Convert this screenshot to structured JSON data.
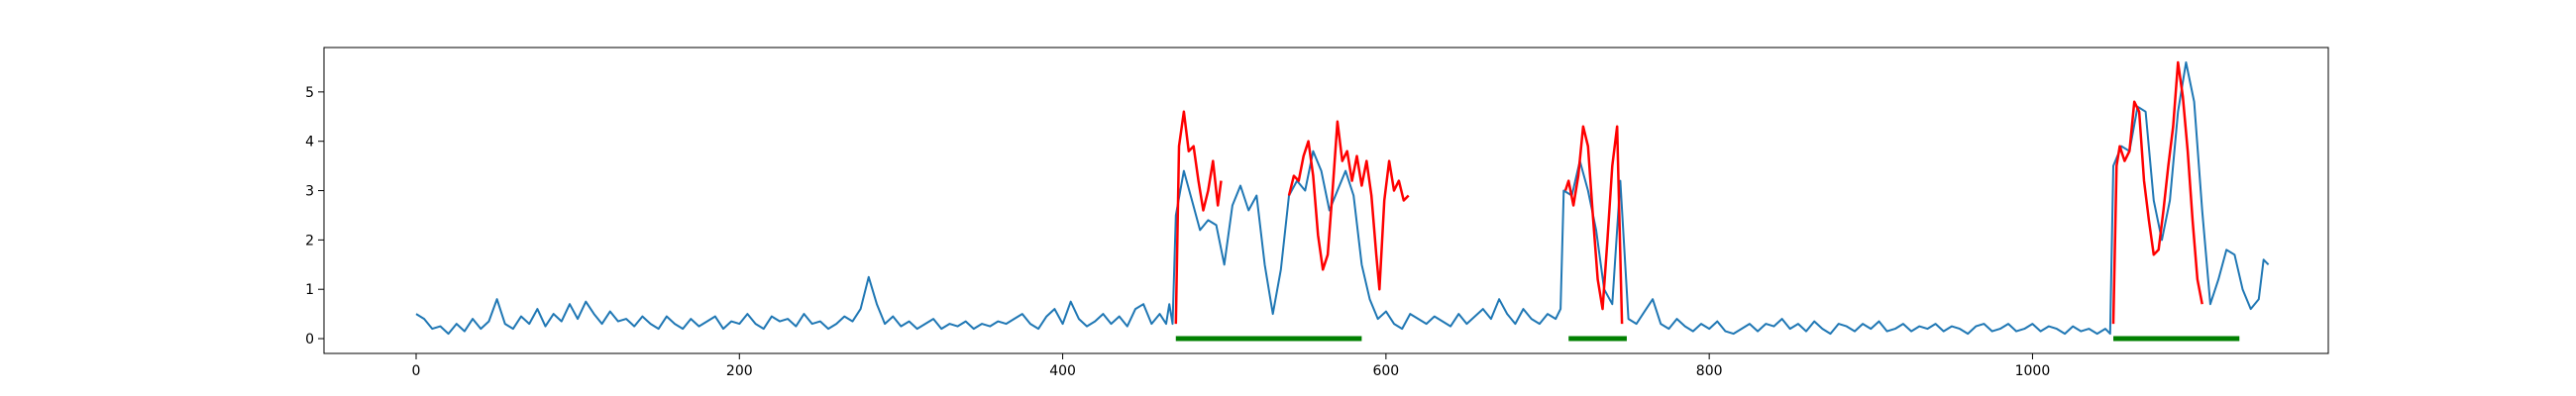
{
  "chart_data": {
    "type": "line",
    "title": "",
    "xlabel": "",
    "ylabel": "",
    "xlim": [
      -57,
      1183
    ],
    "ylim": [
      -0.3,
      5.9
    ],
    "grid": false,
    "legend": "none",
    "x_ticks": [
      0,
      200,
      400,
      600,
      800,
      1000
    ],
    "x_tick_labels": [
      "0",
      "200",
      "400",
      "600",
      "800",
      "1000"
    ],
    "y_ticks": [
      0,
      1,
      2,
      3,
      4,
      5
    ],
    "y_tick_labels": [
      "0",
      "1",
      "2",
      "3",
      "4",
      "5"
    ],
    "colors": {
      "signal": "#1f77b4",
      "highlight": "#ff0000",
      "interval": "#008000",
      "frame": "#000000"
    },
    "signal_points": [
      [
        0,
        0.5
      ],
      [
        5,
        0.4
      ],
      [
        10,
        0.2
      ],
      [
        15,
        0.25
      ],
      [
        20,
        0.1
      ],
      [
        25,
        0.3
      ],
      [
        30,
        0.15
      ],
      [
        35,
        0.4
      ],
      [
        40,
        0.2
      ],
      [
        45,
        0.35
      ],
      [
        50,
        0.8
      ],
      [
        55,
        0.3
      ],
      [
        60,
        0.2
      ],
      [
        65,
        0.45
      ],
      [
        70,
        0.3
      ],
      [
        75,
        0.6
      ],
      [
        80,
        0.25
      ],
      [
        85,
        0.5
      ],
      [
        90,
        0.35
      ],
      [
        95,
        0.7
      ],
      [
        100,
        0.4
      ],
      [
        105,
        0.75
      ],
      [
        110,
        0.5
      ],
      [
        115,
        0.3
      ],
      [
        120,
        0.55
      ],
      [
        125,
        0.35
      ],
      [
        130,
        0.4
      ],
      [
        135,
        0.25
      ],
      [
        140,
        0.45
      ],
      [
        145,
        0.3
      ],
      [
        150,
        0.2
      ],
      [
        155,
        0.45
      ],
      [
        160,
        0.3
      ],
      [
        165,
        0.2
      ],
      [
        170,
        0.4
      ],
      [
        175,
        0.25
      ],
      [
        180,
        0.35
      ],
      [
        185,
        0.45
      ],
      [
        190,
        0.2
      ],
      [
        195,
        0.35
      ],
      [
        200,
        0.3
      ],
      [
        205,
        0.5
      ],
      [
        210,
        0.3
      ],
      [
        215,
        0.2
      ],
      [
        220,
        0.45
      ],
      [
        225,
        0.35
      ],
      [
        230,
        0.4
      ],
      [
        235,
        0.25
      ],
      [
        240,
        0.5
      ],
      [
        245,
        0.3
      ],
      [
        250,
        0.35
      ],
      [
        255,
        0.2
      ],
      [
        260,
        0.3
      ],
      [
        265,
        0.45
      ],
      [
        270,
        0.35
      ],
      [
        275,
        0.6
      ],
      [
        280,
        1.25
      ],
      [
        285,
        0.7
      ],
      [
        290,
        0.3
      ],
      [
        295,
        0.45
      ],
      [
        300,
        0.25
      ],
      [
        305,
        0.35
      ],
      [
        310,
        0.2
      ],
      [
        315,
        0.3
      ],
      [
        320,
        0.4
      ],
      [
        325,
        0.2
      ],
      [
        330,
        0.3
      ],
      [
        335,
        0.25
      ],
      [
        340,
        0.35
      ],
      [
        345,
        0.2
      ],
      [
        350,
        0.3
      ],
      [
        355,
        0.25
      ],
      [
        360,
        0.35
      ],
      [
        365,
        0.3
      ],
      [
        370,
        0.4
      ],
      [
        375,
        0.5
      ],
      [
        380,
        0.3
      ],
      [
        385,
        0.2
      ],
      [
        390,
        0.45
      ],
      [
        395,
        0.6
      ],
      [
        400,
        0.3
      ],
      [
        405,
        0.75
      ],
      [
        410,
        0.4
      ],
      [
        415,
        0.25
      ],
      [
        420,
        0.35
      ],
      [
        425,
        0.5
      ],
      [
        430,
        0.3
      ],
      [
        435,
        0.45
      ],
      [
        440,
        0.25
      ],
      [
        445,
        0.6
      ],
      [
        450,
        0.7
      ],
      [
        455,
        0.3
      ],
      [
        460,
        0.5
      ],
      [
        464,
        0.3
      ],
      [
        466,
        0.7
      ],
      [
        468,
        0.3
      ],
      [
        470,
        2.5
      ],
      [
        475,
        3.4
      ],
      [
        480,
        2.8
      ],
      [
        485,
        2.2
      ],
      [
        490,
        2.4
      ],
      [
        495,
        2.3
      ],
      [
        500,
        1.5
      ],
      [
        505,
        2.7
      ],
      [
        510,
        3.1
      ],
      [
        515,
        2.6
      ],
      [
        520,
        2.9
      ],
      [
        525,
        1.5
      ],
      [
        530,
        0.5
      ],
      [
        535,
        1.4
      ],
      [
        540,
        2.9
      ],
      [
        545,
        3.2
      ],
      [
        550,
        3.0
      ],
      [
        555,
        3.8
      ],
      [
        560,
        3.4
      ],
      [
        565,
        2.6
      ],
      [
        570,
        3.0
      ],
      [
        575,
        3.4
      ],
      [
        580,
        2.9
      ],
      [
        585,
        1.5
      ],
      [
        590,
        0.8
      ],
      [
        595,
        0.4
      ],
      [
        600,
        0.55
      ],
      [
        605,
        0.3
      ],
      [
        610,
        0.2
      ],
      [
        615,
        0.5
      ],
      [
        620,
        0.4
      ],
      [
        625,
        0.3
      ],
      [
        630,
        0.45
      ],
      [
        635,
        0.35
      ],
      [
        640,
        0.25
      ],
      [
        645,
        0.5
      ],
      [
        650,
        0.3
      ],
      [
        655,
        0.45
      ],
      [
        660,
        0.6
      ],
      [
        665,
        0.4
      ],
      [
        670,
        0.8
      ],
      [
        675,
        0.5
      ],
      [
        680,
        0.3
      ],
      [
        685,
        0.6
      ],
      [
        690,
        0.4
      ],
      [
        695,
        0.3
      ],
      [
        700,
        0.5
      ],
      [
        705,
        0.4
      ],
      [
        708,
        0.6
      ],
      [
        710,
        3.0
      ],
      [
        715,
        2.9
      ],
      [
        720,
        3.6
      ],
      [
        725,
        3.0
      ],
      [
        730,
        2.2
      ],
      [
        735,
        1.0
      ],
      [
        740,
        0.7
      ],
      [
        745,
        3.2
      ],
      [
        750,
        0.4
      ],
      [
        755,
        0.3
      ],
      [
        760,
        0.55
      ],
      [
        765,
        0.8
      ],
      [
        770,
        0.3
      ],
      [
        775,
        0.2
      ],
      [
        780,
        0.4
      ],
      [
        785,
        0.25
      ],
      [
        790,
        0.15
      ],
      [
        795,
        0.3
      ],
      [
        800,
        0.2
      ],
      [
        805,
        0.35
      ],
      [
        810,
        0.15
      ],
      [
        815,
        0.1
      ],
      [
        820,
        0.2
      ],
      [
        825,
        0.3
      ],
      [
        830,
        0.15
      ],
      [
        835,
        0.3
      ],
      [
        840,
        0.25
      ],
      [
        845,
        0.4
      ],
      [
        850,
        0.2
      ],
      [
        855,
        0.3
      ],
      [
        860,
        0.15
      ],
      [
        865,
        0.35
      ],
      [
        870,
        0.2
      ],
      [
        875,
        0.1
      ],
      [
        880,
        0.3
      ],
      [
        885,
        0.25
      ],
      [
        890,
        0.15
      ],
      [
        895,
        0.3
      ],
      [
        900,
        0.2
      ],
      [
        905,
        0.35
      ],
      [
        910,
        0.15
      ],
      [
        915,
        0.2
      ],
      [
        920,
        0.3
      ],
      [
        925,
        0.15
      ],
      [
        930,
        0.25
      ],
      [
        935,
        0.2
      ],
      [
        940,
        0.3
      ],
      [
        945,
        0.15
      ],
      [
        950,
        0.25
      ],
      [
        955,
        0.2
      ],
      [
        960,
        0.1
      ],
      [
        965,
        0.25
      ],
      [
        970,
        0.3
      ],
      [
        975,
        0.15
      ],
      [
        980,
        0.2
      ],
      [
        985,
        0.3
      ],
      [
        990,
        0.15
      ],
      [
        995,
        0.2
      ],
      [
        1000,
        0.3
      ],
      [
        1005,
        0.15
      ],
      [
        1010,
        0.25
      ],
      [
        1015,
        0.2
      ],
      [
        1020,
        0.1
      ],
      [
        1025,
        0.25
      ],
      [
        1030,
        0.15
      ],
      [
        1035,
        0.2
      ],
      [
        1040,
        0.1
      ],
      [
        1045,
        0.2
      ],
      [
        1048,
        0.1
      ],
      [
        1050,
        3.5
      ],
      [
        1055,
        3.9
      ],
      [
        1060,
        3.8
      ],
      [
        1065,
        4.7
      ],
      [
        1070,
        4.6
      ],
      [
        1075,
        2.8
      ],
      [
        1080,
        2.0
      ],
      [
        1085,
        2.8
      ],
      [
        1090,
        4.6
      ],
      [
        1095,
        5.6
      ],
      [
        1100,
        4.8
      ],
      [
        1105,
        2.6
      ],
      [
        1110,
        0.7
      ],
      [
        1115,
        1.2
      ],
      [
        1120,
        1.8
      ],
      [
        1125,
        1.7
      ],
      [
        1130,
        1.0
      ],
      [
        1135,
        0.6
      ],
      [
        1140,
        0.8
      ],
      [
        1143,
        1.6
      ],
      [
        1146,
        1.5
      ]
    ],
    "highlight_segments": [
      [
        [
          470,
          0.3
        ],
        [
          472,
          3.9
        ],
        [
          475,
          4.6
        ],
        [
          478,
          3.8
        ],
        [
          481,
          3.9
        ],
        [
          484,
          3.2
        ],
        [
          487,
          2.6
        ],
        [
          490,
          3.0
        ],
        [
          493,
          3.6
        ],
        [
          496,
          2.7
        ],
        [
          498,
          3.2
        ]
      ],
      [
        [
          540,
          2.9
        ],
        [
          543,
          3.3
        ],
        [
          546,
          3.2
        ],
        [
          549,
          3.7
        ],
        [
          552,
          4.0
        ],
        [
          555,
          3.3
        ],
        [
          558,
          2.1
        ],
        [
          561,
          1.4
        ],
        [
          564,
          1.7
        ],
        [
          567,
          3.0
        ],
        [
          570,
          4.4
        ],
        [
          573,
          3.6
        ],
        [
          576,
          3.8
        ],
        [
          579,
          3.2
        ],
        [
          582,
          3.7
        ],
        [
          585,
          3.1
        ],
        [
          588,
          3.6
        ],
        [
          591,
          2.9
        ],
        [
          594,
          1.7
        ],
        [
          596,
          1.0
        ],
        [
          599,
          2.8
        ],
        [
          602,
          3.6
        ],
        [
          605,
          3.0
        ],
        [
          608,
          3.2
        ],
        [
          611,
          2.8
        ],
        [
          614,
          2.9
        ]
      ],
      [
        [
          711,
          3.0
        ],
        [
          713,
          3.2
        ],
        [
          716,
          2.7
        ],
        [
          719,
          3.3
        ],
        [
          722,
          4.3
        ],
        [
          725,
          3.9
        ],
        [
          728,
          2.5
        ],
        [
          731,
          1.2
        ],
        [
          734,
          0.6
        ],
        [
          737,
          2.0
        ],
        [
          740,
          3.5
        ],
        [
          743,
          4.3
        ],
        [
          746,
          0.3
        ]
      ],
      [
        [
          1050,
          0.3
        ],
        [
          1052,
          3.5
        ],
        [
          1054,
          3.9
        ],
        [
          1057,
          3.6
        ],
        [
          1060,
          3.8
        ],
        [
          1063,
          4.8
        ],
        [
          1066,
          4.6
        ],
        [
          1069,
          3.2
        ],
        [
          1072,
          2.4
        ],
        [
          1075,
          1.7
        ],
        [
          1078,
          1.8
        ],
        [
          1081,
          2.6
        ],
        [
          1084,
          3.5
        ],
        [
          1087,
          4.3
        ],
        [
          1090,
          5.6
        ],
        [
          1093,
          4.9
        ],
        [
          1096,
          3.8
        ],
        [
          1099,
          2.4
        ],
        [
          1102,
          1.2
        ],
        [
          1105,
          0.7
        ]
      ]
    ],
    "intervals": [
      [
        470,
        585
      ],
      [
        713,
        749
      ],
      [
        1050,
        1128
      ]
    ]
  }
}
